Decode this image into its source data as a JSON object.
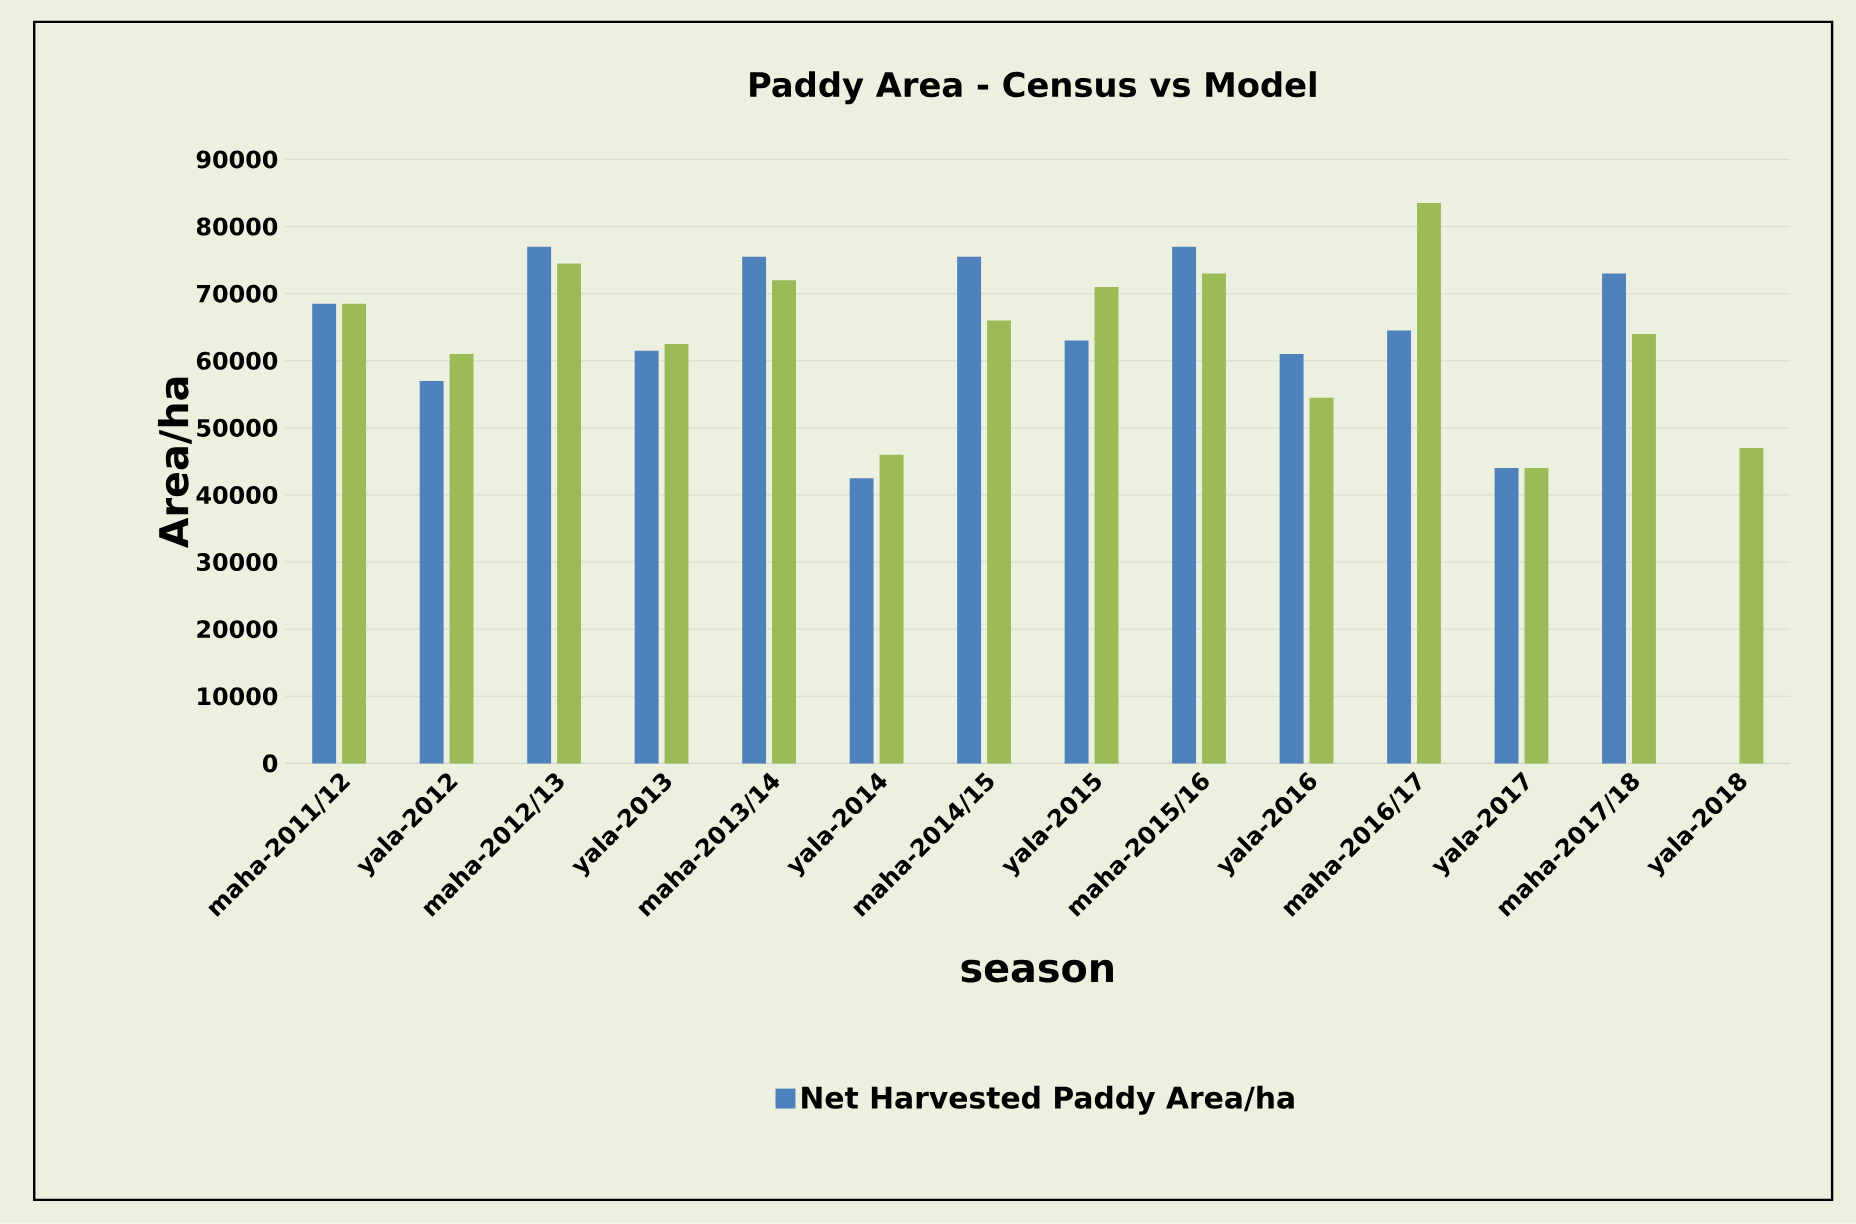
{
  "chart_data": {
    "type": "bar",
    "title": "Paddy Area - Census vs Model",
    "xlabel": "season",
    "ylabel": "Area/ha",
    "categories": [
      "maha-2011/12",
      "yala-2012",
      "maha-2012/13",
      "yala-2013",
      "maha-2013/14",
      "yala-2014",
      "maha-2014/15",
      "yala-2015",
      "maha-2015/16",
      "yala-2016",
      "maha-2016/17",
      "yala-2017",
      "maha-2017/18",
      "yala-2018"
    ],
    "series": [
      {
        "name": "Net Harvested Paddy Area/ha",
        "color": "#4f81bd",
        "values": [
          68500,
          57000,
          77000,
          61500,
          75500,
          42500,
          75500,
          63000,
          77000,
          61000,
          64500,
          44000,
          73000,
          null
        ]
      },
      {
        "color": "#9bbb59",
        "values": [
          68500,
          61000,
          74500,
          62500,
          72000,
          46000,
          66000,
          71000,
          73000,
          54500,
          83500,
          44000,
          64000,
          47000
        ]
      }
    ],
    "ylim": [
      0,
      90000
    ],
    "yticks": [
      0,
      10000,
      20000,
      30000,
      40000,
      50000,
      60000,
      70000,
      80000,
      90000
    ],
    "grid": "y",
    "legend": "bottom"
  }
}
